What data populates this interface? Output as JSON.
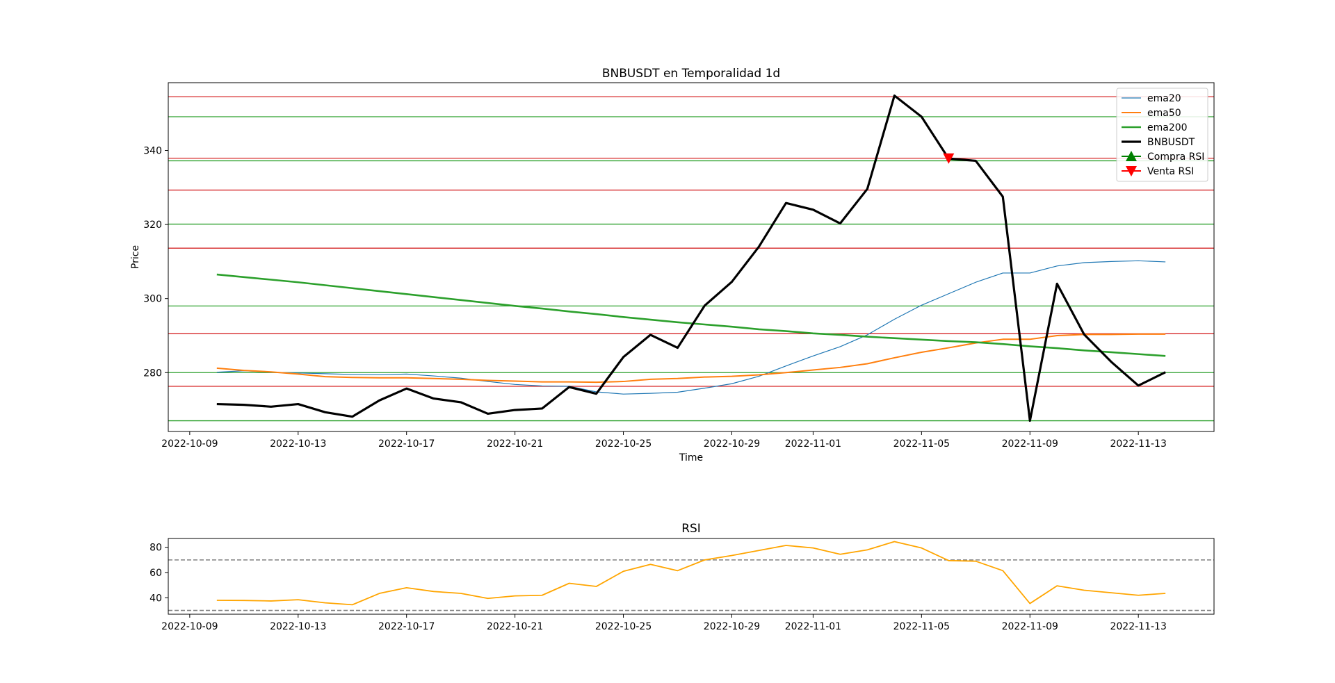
{
  "chart_data": [
    {
      "type": "line",
      "title": "BNBUSDT en Temporalidad 1d",
      "xlabel": "Time",
      "ylabel": "Price",
      "x": [
        "2022-10-10",
        "2022-10-11",
        "2022-10-12",
        "2022-10-13",
        "2022-10-14",
        "2022-10-15",
        "2022-10-16",
        "2022-10-17",
        "2022-10-18",
        "2022-10-19",
        "2022-10-20",
        "2022-10-21",
        "2022-10-22",
        "2022-10-23",
        "2022-10-24",
        "2022-10-25",
        "2022-10-26",
        "2022-10-27",
        "2022-10-28",
        "2022-10-29",
        "2022-10-30",
        "2022-10-31",
        "2022-11-01",
        "2022-11-02",
        "2022-11-03",
        "2022-11-04",
        "2022-11-05",
        "2022-11-06",
        "2022-11-07",
        "2022-11-08",
        "2022-11-09",
        "2022-11-10",
        "2022-11-11",
        "2022-11-12",
        "2022-11-13",
        "2022-11-14"
      ],
      "x_ticks": [
        "2022-10-09",
        "2022-10-13",
        "2022-10-17",
        "2022-10-21",
        "2022-10-25",
        "2022-10-29",
        "2022-11-01",
        "2022-11-05",
        "2022-11-09",
        "2022-11-13"
      ],
      "y_ticks": [
        280,
        300,
        320,
        340
      ],
      "xlim": [
        "2022-10-08T05:00",
        "2022-11-15T19:00"
      ],
      "ylim": [
        264.1,
        358.3
      ],
      "legend_position": "top-right",
      "legend": [
        "ema20",
        "ema50",
        "ema200",
        "BNBUSDT",
        "Compra RSI",
        "Venta RSI"
      ],
      "series": [
        {
          "name": "ema20",
          "color": "#1f77b4",
          "values": [
            280.1,
            280.5,
            280.1,
            279.9,
            279.7,
            279.5,
            279.4,
            279.6,
            279.1,
            278.5,
            277.6,
            276.8,
            276.4,
            276.3,
            274.8,
            274.2,
            274.4,
            274.7,
            275.8,
            277.0,
            279.0,
            281.8,
            284.5,
            287.0,
            290.2,
            294.4,
            298.2,
            301.3,
            304.4,
            306.9,
            306.9,
            308.8,
            309.7,
            310.0,
            310.2,
            309.9
          ]
        },
        {
          "name": "ema50",
          "color": "#ff7f0e",
          "values": [
            281.2,
            280.6,
            280.2,
            279.6,
            278.9,
            278.7,
            278.6,
            278.6,
            278.4,
            278.2,
            277.9,
            277.7,
            277.5,
            277.5,
            277.4,
            277.6,
            278.2,
            278.4,
            278.8,
            279.0,
            279.4,
            280.0,
            280.7,
            281.4,
            282.4,
            284.0,
            285.5,
            286.7,
            288.0,
            289.0,
            289.0,
            290.0,
            290.3,
            290.3,
            290.4,
            290.4
          ]
        },
        {
          "name": "ema200",
          "color": "#2ca02c",
          "values": [
            306.5,
            305.8,
            305.1,
            304.4,
            303.6,
            302.8,
            302.0,
            301.2,
            300.4,
            299.6,
            298.8,
            298.0,
            297.3,
            296.5,
            295.8,
            295.0,
            294.3,
            293.6,
            293.0,
            292.4,
            291.7,
            291.2,
            290.6,
            290.2,
            289.7,
            289.3,
            288.9,
            288.5,
            288.2,
            287.7,
            287.1,
            286.6,
            286.0,
            285.5,
            285.0,
            284.5
          ]
        },
        {
          "name": "BNBUSDT",
          "color": "#000000",
          "values": [
            271.5,
            271.3,
            270.8,
            271.5,
            269.3,
            268.1,
            272.5,
            275.7,
            273.0,
            272.0,
            268.9,
            269.9,
            270.3,
            276.1,
            274.3,
            284.2,
            290.2,
            286.7,
            298.1,
            304.5,
            314.0,
            325.8,
            324.0,
            320.3,
            329.6,
            354.8,
            349.1,
            337.8,
            337.2,
            327.5,
            267.0,
            304.0,
            290.3,
            282.9,
            276.5,
            280.1
          ]
        }
      ],
      "horizontal_lines": [
        {
          "color": "#2ca02c",
          "values": [
            267.0,
            280.0,
            298.0,
            320.1,
            337.2,
            349.1
          ]
        },
        {
          "color": "#d62728",
          "values": [
            276.3,
            290.5,
            313.6,
            329.3,
            337.9,
            354.5
          ]
        }
      ],
      "markers": [
        {
          "name": "Compra RSI",
          "color": "#008000",
          "shape": "triangle-up",
          "points": []
        },
        {
          "name": "Venta RSI",
          "color": "#ff0000",
          "shape": "triangle-down",
          "points": [
            {
              "x": "2022-11-06",
              "y": 337.9
            }
          ]
        }
      ]
    },
    {
      "type": "line",
      "title": "RSI",
      "x_ticks": [
        "2022-10-09",
        "2022-10-13",
        "2022-10-17",
        "2022-10-21",
        "2022-10-25",
        "2022-10-29",
        "2022-11-01",
        "2022-11-05",
        "2022-11-09",
        "2022-11-13"
      ],
      "y_ticks": [
        40,
        60,
        80
      ],
      "xlim": [
        "2022-10-08T05:00",
        "2022-11-15T19:00"
      ],
      "ylim": [
        27,
        87
      ],
      "series": [
        {
          "color": "#ffa500",
          "values": [
            38.0,
            37.9,
            37.5,
            38.5,
            36.0,
            34.5,
            43.5,
            48.0,
            45.0,
            43.5,
            39.5,
            41.5,
            42.0,
            51.5,
            49.0,
            61.0,
            66.5,
            61.5,
            70.0,
            73.5,
            77.5,
            81.5,
            79.5,
            74.5,
            78.0,
            84.5,
            79.5,
            69.5,
            69.0,
            61.5,
            35.5,
            49.5,
            46.0,
            44.0,
            42.0,
            43.5
          ]
        }
      ],
      "horizontal_lines": [
        {
          "color": "#808080",
          "style": "dashed",
          "values": [
            70,
            30
          ]
        }
      ]
    }
  ]
}
